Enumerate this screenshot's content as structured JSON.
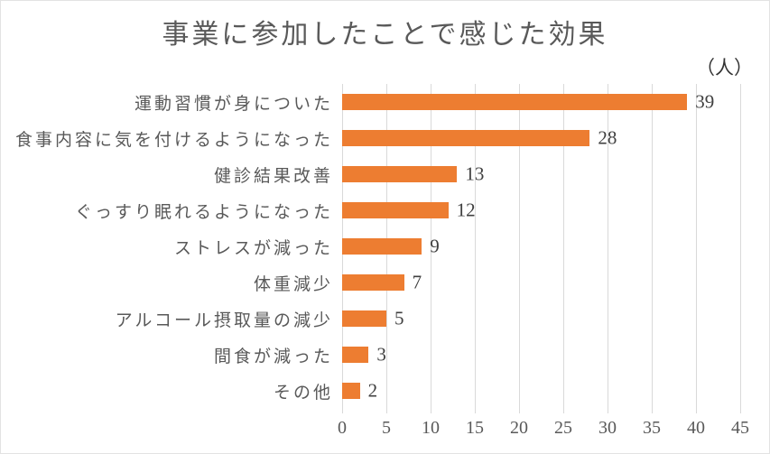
{
  "title": "事業に参加したことで感じた効果",
  "unit_label": "（人）",
  "colors": {
    "bar": "#ED7D31",
    "gridline": "#D9D9D9",
    "title_text": "#595959",
    "category_text": "#595959",
    "axis_text": "#595959",
    "value_text": "#404040",
    "unit_text": "#333333",
    "background": "#FFFFFF"
  },
  "chart_data": {
    "type": "bar",
    "orientation": "horizontal",
    "title": "事業に参加したことで感じた効果",
    "unit": "（人）",
    "categories": [
      "運動習慣が身についた",
      "食事内容に気を付けるようになった",
      "健診結果改善",
      "ぐっすり眠れるようになった",
      "ストレスが減った",
      "体重減少",
      "アルコール摂取量の減少",
      "間食が減った",
      "その他"
    ],
    "values": [
      39,
      28,
      13,
      12,
      9,
      7,
      5,
      3,
      2
    ],
    "xlabel": "",
    "ylabel": "",
    "xlim": [
      0,
      45
    ],
    "x_ticks": [
      0,
      5,
      10,
      15,
      20,
      25,
      30,
      35,
      40,
      45
    ],
    "grid": true,
    "legend": false,
    "data_labels": true
  }
}
